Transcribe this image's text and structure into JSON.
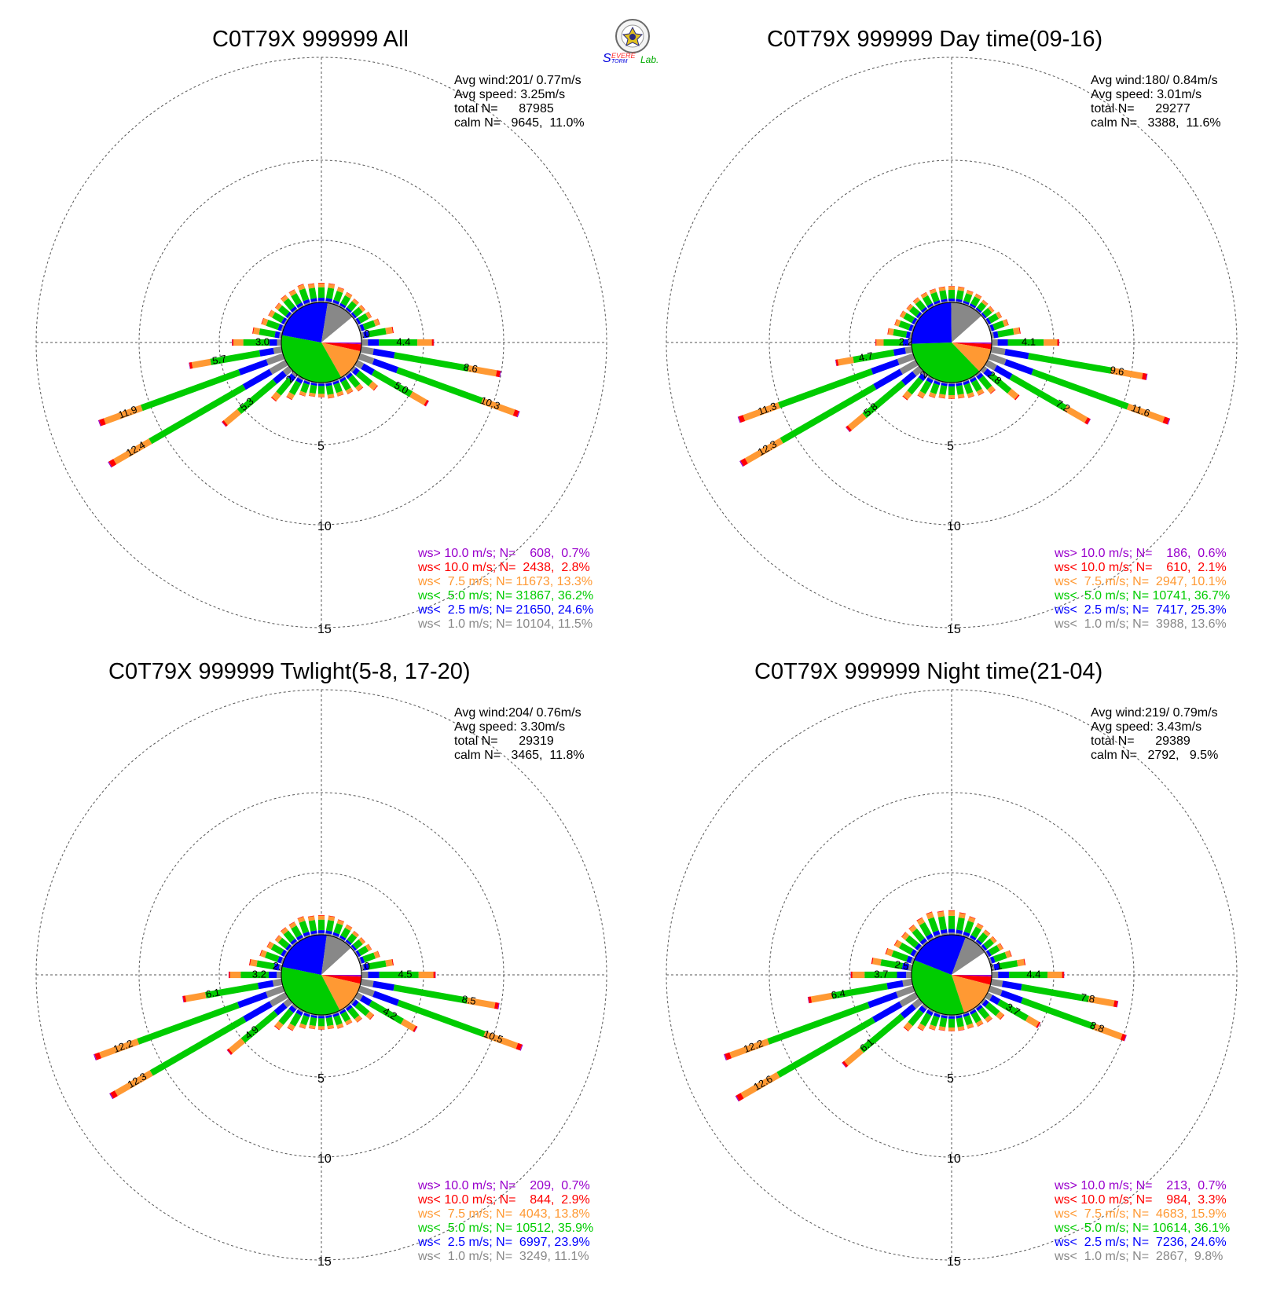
{
  "logo": {
    "text_s1": "S",
    "text_evere": "EVERE",
    "text_torm": "TORM",
    "text_lab": "Lab."
  },
  "colors": {
    "gt10": "#9900cc",
    "lt10": "#ff0000",
    "lt75": "#ff9933",
    "lt5": "#00cc00",
    "lt25": "#0000ff",
    "lt1": "#888888",
    "grid": "#555555"
  },
  "chart_data": [
    {
      "type": "windrose",
      "title": "C0T79X 999999 All",
      "stats": [
        "Avg wind:201/ 0.77m/s",
        "Avg speed: 3.25m/s",
        "total N=      87985",
        "calm N=   9645,  11.0%"
      ],
      "rings": [
        "5",
        "10",
        "15"
      ],
      "legend": [
        {
          "label": "ws> 10.0 m/s; N=    608,  0.7%",
          "color": "gt10"
        },
        {
          "label": "ws< 10.0 m/s; N=  2438,  2.8%",
          "color": "lt10"
        },
        {
          "label": "ws<  7.5 m/s; N= 11673, 13.3%",
          "color": "lt75"
        },
        {
          "label": "ws<  5.0 m/s; N= 31867, 36.2%",
          "color": "lt5"
        },
        {
          "label": "ws<  2.5 m/s; N= 21650, 24.6%",
          "color": "lt25"
        },
        {
          "label": "ws<  1.0 m/s; N= 10104, 11.5%",
          "color": "lt1"
        }
      ],
      "pie": [
        11.5,
        24.6,
        36.2,
        13.3,
        2.8,
        0.7,
        11.0
      ],
      "directions": [
        {
          "dir": 0,
          "total": 1.2
        },
        {
          "dir": 10,
          "total": 1.2
        },
        {
          "dir": 20,
          "total": 1.1
        },
        {
          "dir": 30,
          "total": 1.0
        },
        {
          "dir": 40,
          "total": 0.9
        },
        {
          "dir": 50,
          "total": 0.9
        },
        {
          "dir": 60,
          "total": 1.0
        },
        {
          "dir": 70,
          "total": 1.3
        },
        {
          "dir": 80,
          "total": 2.0,
          "label": "2.0"
        },
        {
          "dir": 90,
          "total": 4.4,
          "label": "4.4"
        },
        {
          "dir": 100,
          "total": 8.6,
          "label": "8.6"
        },
        {
          "dir": 110,
          "total": 10.3,
          "label": "10.3"
        },
        {
          "dir": 120,
          "total": 5.0,
          "label": "5.0"
        },
        {
          "dir": 130,
          "total": 1.9
        },
        {
          "dir": 140,
          "total": 1.3
        },
        {
          "dir": 150,
          "total": 1.1
        },
        {
          "dir": 160,
          "total": 1.0
        },
        {
          "dir": 170,
          "total": 1.0
        },
        {
          "dir": 180,
          "total": 0.9
        },
        {
          "dir": 190,
          "total": 0.9
        },
        {
          "dir": 200,
          "total": 1.0
        },
        {
          "dir": 210,
          "total": 1.5
        },
        {
          "dir": 220,
          "total": 2.1,
          "label": "2.1"
        },
        {
          "dir": 230,
          "total": 5.3,
          "label": "5.3"
        },
        {
          "dir": 240,
          "total": 12.4,
          "label": "12.4"
        },
        {
          "dir": 250,
          "total": 11.9,
          "label": "11.9"
        },
        {
          "dir": 260,
          "total": 5.7,
          "label": "5.7"
        },
        {
          "dir": 270,
          "total": 3.0,
          "label": "3.0"
        },
        {
          "dir": 280,
          "total": 1.8
        },
        {
          "dir": 290,
          "total": 1.4
        },
        {
          "dir": 300,
          "total": 1.2
        },
        {
          "dir": 310,
          "total": 1.1
        },
        {
          "dir": 320,
          "total": 1.2
        },
        {
          "dir": 330,
          "total": 1.2
        },
        {
          "dir": 340,
          "total": 1.3
        },
        {
          "dir": 350,
          "total": 1.2
        }
      ]
    },
    {
      "type": "windrose",
      "title": "C0T79X 999999 Day time(09-16)",
      "stats": [
        "Avg wind:180/ 0.84m/s",
        "Avg speed: 3.01m/s",
        "total N=      29277",
        "calm N=   3388,  11.6%"
      ],
      "rings": [
        "5",
        "10",
        "15"
      ],
      "legend": [
        {
          "label": "ws> 10.0 m/s; N=    186,  0.6%",
          "color": "gt10"
        },
        {
          "label": "ws< 10.0 m/s; N=    610,  2.1%",
          "color": "lt10"
        },
        {
          "label": "ws<  7.5 m/s; N=  2947, 10.1%",
          "color": "lt75"
        },
        {
          "label": "ws<  5.0 m/s; N= 10741, 36.7%",
          "color": "lt5"
        },
        {
          "label": "ws<  2.5 m/s; N=  7417, 25.3%",
          "color": "lt25"
        },
        {
          "label": "ws<  1.0 m/s; N=  3988, 13.6%",
          "color": "lt1"
        }
      ],
      "pie": [
        13.6,
        25.3,
        36.7,
        10.1,
        2.1,
        0.6,
        11.6
      ],
      "directions": [
        {
          "dir": 0,
          "total": 1.0
        },
        {
          "dir": 10,
          "total": 1.0
        },
        {
          "dir": 20,
          "total": 0.9
        },
        {
          "dir": 30,
          "total": 0.9
        },
        {
          "dir": 40,
          "total": 0.8
        },
        {
          "dir": 50,
          "total": 0.8
        },
        {
          "dir": 60,
          "total": 1.0
        },
        {
          "dir": 70,
          "total": 1.2
        },
        {
          "dir": 80,
          "total": 1.8
        },
        {
          "dir": 90,
          "total": 4.1,
          "label": "4.1"
        },
        {
          "dir": 100,
          "total": 9.6,
          "label": "9.6"
        },
        {
          "dir": 110,
          "total": 11.6,
          "label": "11.6"
        },
        {
          "dir": 120,
          "total": 7.2,
          "label": "7.2"
        },
        {
          "dir": 130,
          "total": 2.8,
          "label": "2.8"
        },
        {
          "dir": 140,
          "total": 1.5
        },
        {
          "dir": 150,
          "total": 1.2
        },
        {
          "dir": 160,
          "total": 1.1
        },
        {
          "dir": 170,
          "total": 1.0
        },
        {
          "dir": 180,
          "total": 1.0
        },
        {
          "dir": 190,
          "total": 1.0
        },
        {
          "dir": 200,
          "total": 1.1
        },
        {
          "dir": 210,
          "total": 1.4
        },
        {
          "dir": 220,
          "total": 2.0,
          "label": "2"
        },
        {
          "dir": 230,
          "total": 5.8,
          "label": "5.8"
        },
        {
          "dir": 240,
          "total": 12.3,
          "label": "12.3"
        },
        {
          "dir": 250,
          "total": 11.3,
          "label": "11.3"
        },
        {
          "dir": 260,
          "total": 4.7,
          "label": "4.7"
        },
        {
          "dir": 270,
          "total": 2.2,
          "label": "2.2"
        },
        {
          "dir": 280,
          "total": 1.5
        },
        {
          "dir": 290,
          "total": 1.2
        },
        {
          "dir": 300,
          "total": 1.1
        },
        {
          "dir": 310,
          "total": 1.0
        },
        {
          "dir": 320,
          "total": 1.0
        },
        {
          "dir": 330,
          "total": 1.0
        },
        {
          "dir": 340,
          "total": 1.0
        },
        {
          "dir": 350,
          "total": 1.0
        }
      ]
    },
    {
      "type": "windrose",
      "title": "C0T79X 999999 Twlight(5-8, 17-20)",
      "stats": [
        "Avg wind:204/ 0.76m/s",
        "Avg speed: 3.30m/s",
        "total N=      29319",
        "calm N=   3465,  11.8%"
      ],
      "rings": [
        "5",
        "10",
        "15"
      ],
      "legend": [
        {
          "label": "ws> 10.0 m/s; N=    209,  0.7%",
          "color": "gt10"
        },
        {
          "label": "ws< 10.0 m/s; N=    844,  2.9%",
          "color": "lt10"
        },
        {
          "label": "ws<  7.5 m/s; N=  4043, 13.8%",
          "color": "lt75"
        },
        {
          "label": "ws<  5.0 m/s; N= 10512, 35.9%",
          "color": "lt5"
        },
        {
          "label": "ws<  2.5 m/s; N=  6997, 23.9%",
          "color": "lt25"
        },
        {
          "label": "ws<  1.0 m/s; N=  3249, 11.1%",
          "color": "lt1"
        }
      ],
      "pie": [
        11.1,
        23.9,
        35.9,
        13.8,
        2.9,
        0.7,
        11.8
      ],
      "directions": [
        {
          "dir": 0,
          "total": 1.2
        },
        {
          "dir": 10,
          "total": 1.2
        },
        {
          "dir": 20,
          "total": 1.1
        },
        {
          "dir": 30,
          "total": 1.0
        },
        {
          "dir": 40,
          "total": 0.9
        },
        {
          "dir": 50,
          "total": 0.9
        },
        {
          "dir": 60,
          "total": 1.0
        },
        {
          "dir": 70,
          "total": 1.3
        },
        {
          "dir": 80,
          "total": 2.0,
          "label": "2.0"
        },
        {
          "dir": 90,
          "total": 4.5,
          "label": "4.5"
        },
        {
          "dir": 100,
          "total": 8.5,
          "label": "8.5"
        },
        {
          "dir": 110,
          "total": 10.5,
          "label": "10.5"
        },
        {
          "dir": 120,
          "total": 4.2,
          "label": "4.2"
        },
        {
          "dir": 130,
          "total": 1.6
        },
        {
          "dir": 140,
          "total": 1.2
        },
        {
          "dir": 150,
          "total": 1.0
        },
        {
          "dir": 160,
          "total": 1.0
        },
        {
          "dir": 170,
          "total": 0.9
        },
        {
          "dir": 180,
          "total": 0.9
        },
        {
          "dir": 190,
          "total": 0.9
        },
        {
          "dir": 200,
          "total": 1.0
        },
        {
          "dir": 210,
          "total": 1.4
        },
        {
          "dir": 220,
          "total": 1.8
        },
        {
          "dir": 230,
          "total": 4.9,
          "label": "4.9"
        },
        {
          "dir": 240,
          "total": 12.3,
          "label": "12.3"
        },
        {
          "dir": 250,
          "total": 12.2,
          "label": "12.2"
        },
        {
          "dir": 260,
          "total": 6.1,
          "label": "6.1"
        },
        {
          "dir": 270,
          "total": 3.2,
          "label": "3.2"
        },
        {
          "dir": 280,
          "total": 2.0,
          "label": "2.0"
        },
        {
          "dir": 290,
          "total": 1.5
        },
        {
          "dir": 300,
          "total": 1.3
        },
        {
          "dir": 310,
          "total": 1.1
        },
        {
          "dir": 320,
          "total": 1.2
        },
        {
          "dir": 330,
          "total": 1.2
        },
        {
          "dir": 340,
          "total": 1.3
        },
        {
          "dir": 350,
          "total": 1.2
        }
      ]
    },
    {
      "type": "windrose",
      "title": "C0T79X 999999 Night time(21-04)",
      "stats": [
        "Avg wind:219/ 0.79m/s",
        "Avg speed: 3.43m/s",
        "total N=      29389",
        "calm N=   2792,   9.5%"
      ],
      "rings": [
        "5",
        "10",
        "15"
      ],
      "legend": [
        {
          "label": "ws> 10.0 m/s; N=    213,  0.7%",
          "color": "gt10"
        },
        {
          "label": "ws< 10.0 m/s; N=    984,  3.3%",
          "color": "lt10"
        },
        {
          "label": "ws<  7.5 m/s; N=  4683, 15.9%",
          "color": "lt75"
        },
        {
          "label": "ws<  5.0 m/s; N= 10614, 36.1%",
          "color": "lt5"
        },
        {
          "label": "ws<  2.5 m/s; N=  7236, 24.6%",
          "color": "lt25"
        },
        {
          "label": "ws<  1.0 m/s; N=  2867,  9.8%",
          "color": "lt1"
        }
      ],
      "pie": [
        9.8,
        24.6,
        36.1,
        15.9,
        3.3,
        0.7,
        9.5
      ],
      "directions": [
        {
          "dir": 0,
          "total": 1.5
        },
        {
          "dir": 10,
          "total": 1.4
        },
        {
          "dir": 20,
          "total": 1.3
        },
        {
          "dir": 30,
          "total": 1.1
        },
        {
          "dir": 40,
          "total": 1.0
        },
        {
          "dir": 50,
          "total": 1.0
        },
        {
          "dir": 60,
          "total": 1.1
        },
        {
          "dir": 70,
          "total": 1.4
        },
        {
          "dir": 80,
          "total": 2.1,
          "label": "2.1"
        },
        {
          "dir": 90,
          "total": 4.4,
          "label": "4.4"
        },
        {
          "dir": 100,
          "total": 7.8,
          "label": "7.8"
        },
        {
          "dir": 110,
          "total": 8.8,
          "label": "8.8"
        },
        {
          "dir": 120,
          "total": 3.7,
          "label": "3.7"
        },
        {
          "dir": 130,
          "total": 1.6
        },
        {
          "dir": 140,
          "total": 1.2
        },
        {
          "dir": 150,
          "total": 1.1
        },
        {
          "dir": 160,
          "total": 1.0
        },
        {
          "dir": 170,
          "total": 1.0
        },
        {
          "dir": 180,
          "total": 1.0
        },
        {
          "dir": 190,
          "total": 1.0
        },
        {
          "dir": 200,
          "total": 1.1
        },
        {
          "dir": 210,
          "total": 1.4
        },
        {
          "dir": 220,
          "total": 1.9
        },
        {
          "dir": 230,
          "total": 6.1,
          "label": "6.1"
        },
        {
          "dir": 240,
          "total": 12.6,
          "label": "12.6"
        },
        {
          "dir": 250,
          "total": 12.2,
          "label": "12.2"
        },
        {
          "dir": 260,
          "total": 6.4,
          "label": "6.4"
        },
        {
          "dir": 270,
          "total": 3.7,
          "label": "3.7"
        },
        {
          "dir": 280,
          "total": 2.5,
          "label": "2.5"
        },
        {
          "dir": 290,
          "total": 1.8
        },
        {
          "dir": 300,
          "total": 1.5
        },
        {
          "dir": 310,
          "total": 1.4
        },
        {
          "dir": 320,
          "total": 1.4
        },
        {
          "dir": 330,
          "total": 1.5
        },
        {
          "dir": 340,
          "total": 1.6
        },
        {
          "dir": 350,
          "total": 1.5
        }
      ]
    }
  ]
}
